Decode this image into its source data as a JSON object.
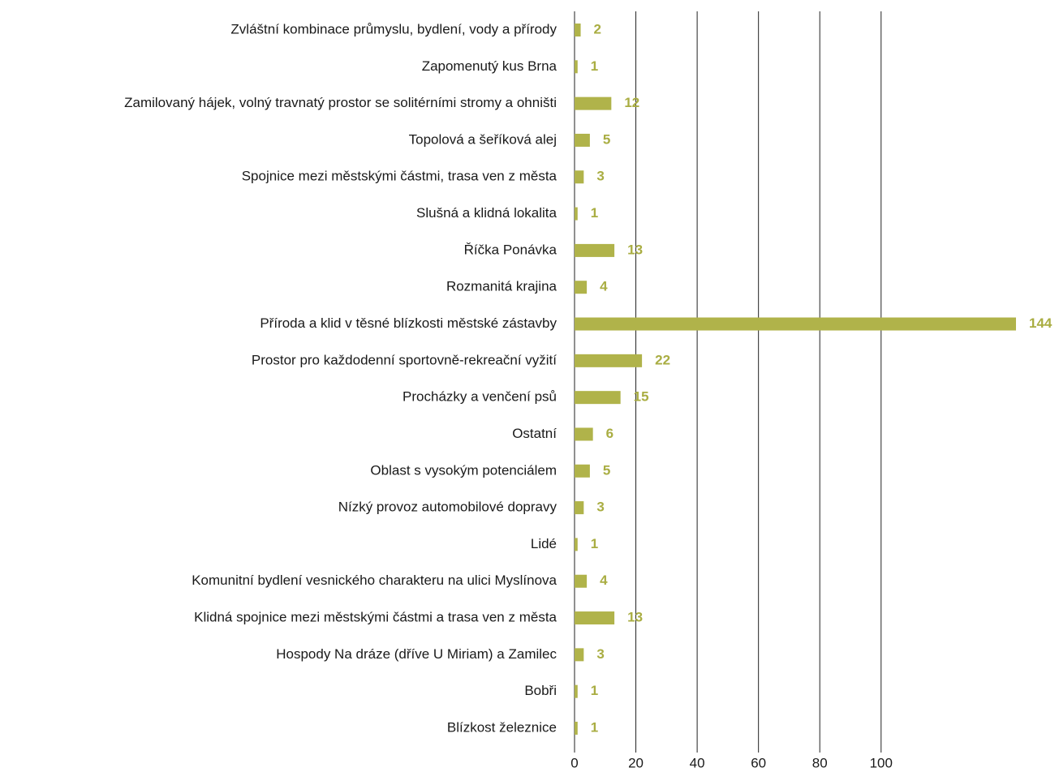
{
  "chart_data": {
    "type": "barh",
    "categories": [
      "Zvláštní kombinace průmyslu, bydlení, vody a přírody",
      "Zapomenutý kus Brna",
      "Zamilovaný hájek, volný travnatý prostor se solitérními stromy a ohništi",
      "Topolová a šeříková alej",
      "Spojnice mezi městskými částmi, trasa ven z města",
      "Slušná a klidná lokalita",
      "Říčka Ponávka",
      "Rozmanitá krajina",
      "Příroda a klid v těsné blízkosti městské zástavby",
      "Prostor pro každodenní sportovně-rekreační vyžití",
      "Procházky a venčení psů",
      "Ostatní",
      "Oblast s vysokým potenciálem",
      "Nízký provoz automobilové dopravy",
      "Lidé",
      "Komunitní bydlení vesnického charakteru na ulici Myslínova",
      "Klidná spojnice mezi městskými částmi a trasa ven z města",
      "Hospody Na dráze (dříve U Miriam) a Zamilec",
      "Bobři",
      "Blízkost železnice"
    ],
    "values": [
      2,
      1,
      12,
      5,
      3,
      1,
      13,
      4,
      144,
      22,
      15,
      6,
      5,
      3,
      1,
      4,
      13,
      3,
      1,
      1
    ],
    "color": "#b0b34a",
    "xlim": [
      0,
      144
    ],
    "xticks": [
      0,
      20,
      40,
      60,
      80,
      100
    ],
    "grid": true
  }
}
